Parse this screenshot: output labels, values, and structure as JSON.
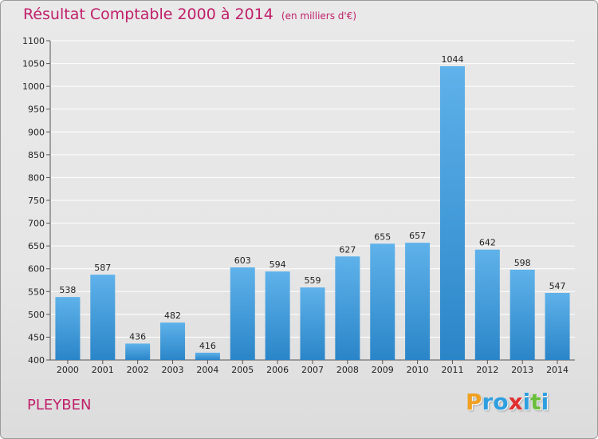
{
  "chart_data": {
    "type": "bar",
    "title": "Résultat Comptable 2000 à 2014",
    "subtitle": "(en milliers d'€)",
    "categories": [
      "2000",
      "2001",
      "2002",
      "2003",
      "2004",
      "2005",
      "2006",
      "2007",
      "2008",
      "2009",
      "2010",
      "2011",
      "2012",
      "2013",
      "2014"
    ],
    "values": [
      538,
      587,
      436,
      482,
      416,
      603,
      594,
      559,
      627,
      655,
      657,
      1044,
      642,
      598,
      547
    ],
    "ylim": [
      400,
      1100
    ],
    "ytick_step": 50,
    "grid": true,
    "xlabel": "",
    "ylabel": ""
  },
  "footer": {
    "commune": "PLEYBEN",
    "logo_letters": [
      {
        "char": "P",
        "color": "#f0a020"
      },
      {
        "char": "r",
        "color": "#2f9fe0"
      },
      {
        "char": "o",
        "color": "#2f9fe0"
      },
      {
        "char": "x",
        "color": "#e03030"
      },
      {
        "char": "i",
        "color": "#2f9fe0"
      },
      {
        "char": "t",
        "color": "#6abf3a"
      },
      {
        "char": "i",
        "color": "#2f9fe0"
      }
    ]
  },
  "colors": {
    "title": "#c0206a",
    "bar_top": "#5fb2ea",
    "bar_bottom": "#2a85c8",
    "grid": "#ffffff",
    "axis_text": "#222222"
  }
}
